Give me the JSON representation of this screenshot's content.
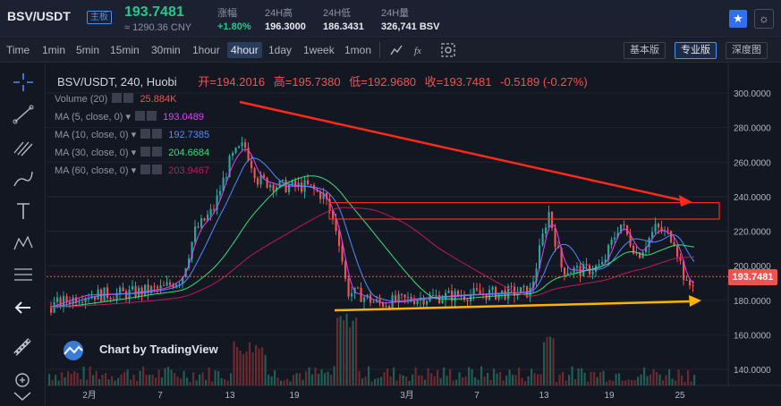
{
  "ticker": {
    "pair": "BSV/USDT",
    "badge": "主板",
    "last_price": "193.7481",
    "cny": "≈ 1290.36 CNY",
    "change_label": "涨幅",
    "change_value": "+1.80%",
    "high_label": "24H高",
    "high_value": "196.3000",
    "low_label": "24H低",
    "low_value": "186.3431",
    "volume_label": "24H量",
    "volume_value": "326,741 BSV"
  },
  "toolbar": {
    "intervals": [
      "Time",
      "1min",
      "5min",
      "15min",
      "30min",
      "1hour",
      "4hour",
      "1day",
      "1week",
      "1mon"
    ],
    "active_interval": "4hour",
    "views": [
      "基本版",
      "专业版",
      "深度图"
    ],
    "active_view": "专业版"
  },
  "legend": {
    "symbol_line": "BSV/USDT, 240, Huobi",
    "open_label": "开=",
    "open_value": "194.2016",
    "high_label": "高=",
    "high_value": "195.7380",
    "low_label": "低=",
    "low_value": "192.9680",
    "close_label": "收=",
    "close_value": "193.7481",
    "change": "-0.5189 (-0.27%)",
    "indicators": [
      {
        "label": "Volume (20)",
        "value": "25.884K",
        "color": "#ef5350"
      },
      {
        "label": "MA (5, close, 0)",
        "value": "193.0489",
        "color": "#e040fb"
      },
      {
        "label": "MA (10, close, 0)",
        "value": "192.7385",
        "color": "#4f8cff"
      },
      {
        "label": "MA (30, close, 0)",
        "value": "204.6684",
        "color": "#39e07a"
      },
      {
        "label": "MA (60, close, 0)",
        "value": "203.9467",
        "color": "#c2185b"
      }
    ]
  },
  "watermark": "Chart by TradingView",
  "price_axis": [
    "300.0000",
    "280.0000",
    "260.0000",
    "240.0000",
    "220.0000",
    "200.0000",
    "180.0000",
    "160.0000",
    "140.0000"
  ],
  "current_price_tag": "193.7481",
  "time_axis": [
    "2月",
    "7",
    "13",
    "19",
    "3月",
    "7",
    "13",
    "19",
    "25"
  ],
  "colors": {
    "up": "#26a69a",
    "down": "#ef5350",
    "accent": "#4c8df6",
    "background": "#131722",
    "arrow_red": "#ff2a1a",
    "arrow_yellow": "#ffb300"
  },
  "icons": {
    "favorite": "star-icon",
    "theme": "sun-icon"
  }
}
